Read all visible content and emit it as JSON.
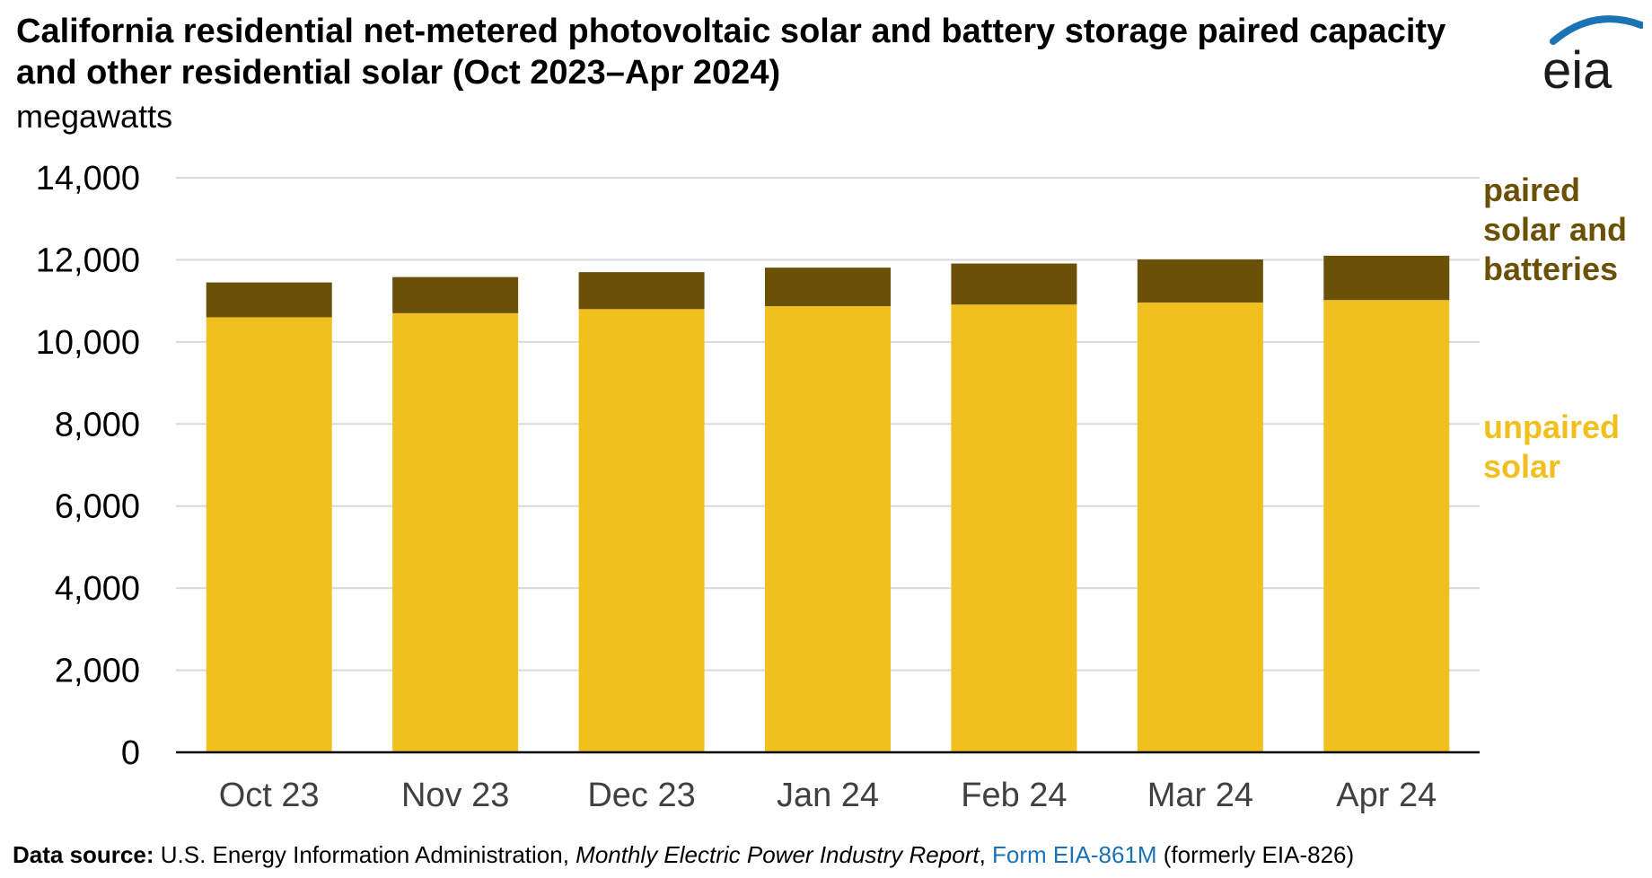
{
  "header": {
    "title": "California residential net-metered photovoltaic solar and battery storage paired capacity and other residential solar (Oct 2023–Apr 2024)",
    "units": "megawatts",
    "logo_text": "eia"
  },
  "source": {
    "label": "Data source:",
    "org": "U.S. Energy Information Administration,",
    "report": "Monthly Electric Power Industry Report",
    "comma": ",",
    "form_link": "Form EIA-861M",
    "note": "(formerly EIA-826)"
  },
  "legend": {
    "paired": [
      "paired",
      "solar and",
      "batteries"
    ],
    "unpaired": [
      "unpaired",
      "solar"
    ]
  },
  "colors": {
    "unpaired": "#F2C01E",
    "paired": "#6A5107",
    "grid": "#D9D9D9",
    "axis": "#000000",
    "tick_text": "#404040",
    "link": "#1a73b5",
    "logo_swoosh": "#1a73b5"
  },
  "chart_data": {
    "type": "bar",
    "stacked": true,
    "categories": [
      "Oct 23",
      "Nov 23",
      "Dec 23",
      "Jan 24",
      "Feb 24",
      "Mar 24",
      "Apr 24"
    ],
    "series": [
      {
        "name": "unpaired solar",
        "values": [
          10600,
          10700,
          10800,
          10870,
          10910,
          10960,
          11020
        ]
      },
      {
        "name": "paired solar and batteries",
        "values": [
          850,
          880,
          900,
          940,
          1000,
          1050,
          1080
        ]
      }
    ],
    "ylim": [
      0,
      14000
    ],
    "yticks": [
      0,
      2000,
      4000,
      6000,
      8000,
      10000,
      12000,
      14000
    ],
    "ytick_labels": [
      "0",
      "2,000",
      "4,000",
      "6,000",
      "8,000",
      "10,000",
      "12,000",
      "14,000"
    ],
    "grid": true,
    "legend_placement": "right"
  }
}
